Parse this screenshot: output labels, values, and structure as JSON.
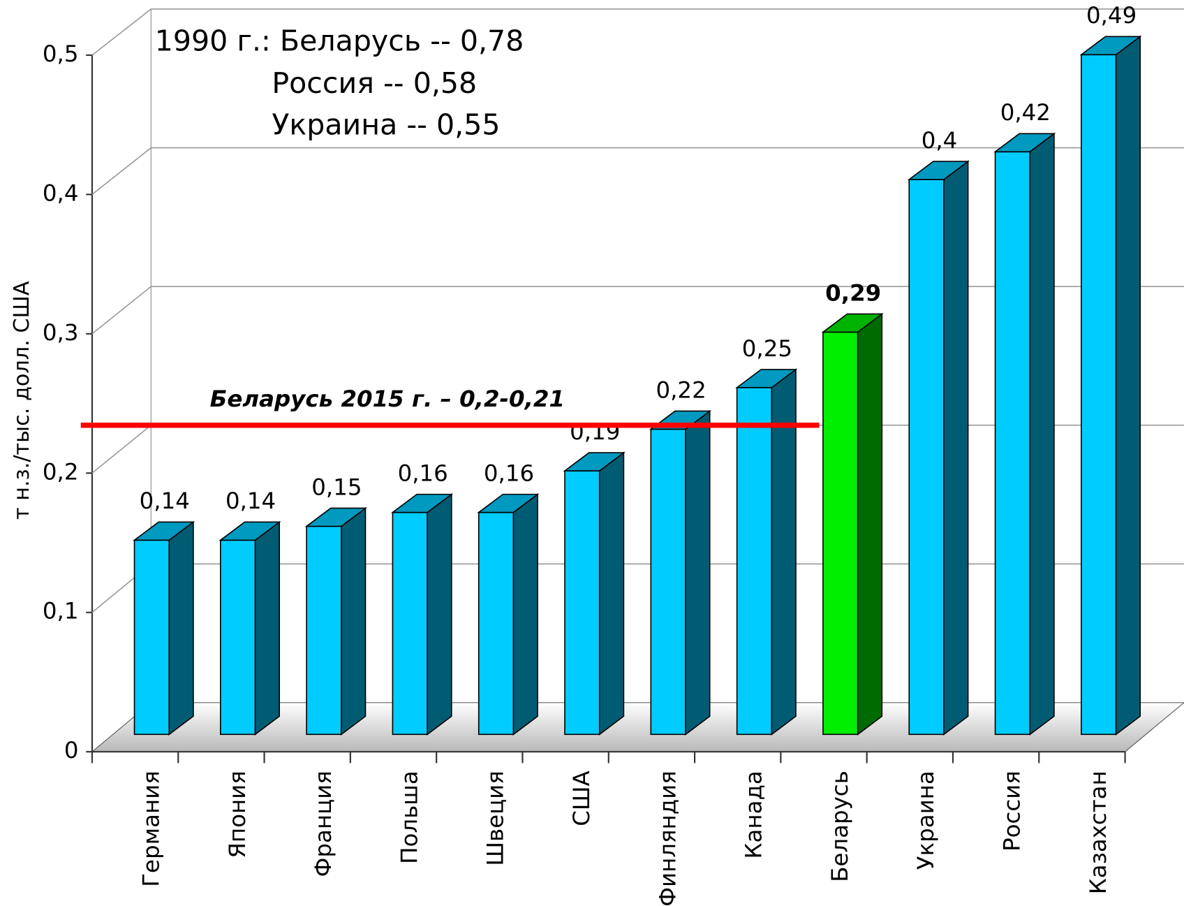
{
  "chart_data": {
    "type": "bar3d",
    "y_label": "т н.з./тыс. долл. США",
    "categories": [
      "Германия",
      "Япония",
      "Франция",
      "Польша",
      "Швеция",
      "США",
      "Финляндия",
      "Канада",
      "Беларусь",
      "Украина",
      "Россия",
      "Казахстан"
    ],
    "values": [
      0.14,
      0.14,
      0.15,
      0.16,
      0.16,
      0.19,
      0.22,
      0.25,
      0.29,
      0.4,
      0.42,
      0.49
    ],
    "value_labels": [
      "0,14",
      "0,14",
      "0,15",
      "0,16",
      "0,16",
      "0,19",
      "0,22",
      "0,25",
      "0,29",
      "0,4",
      "0,42",
      "0,49"
    ],
    "colors": [
      "#00ccff",
      "#00ccff",
      "#00ccff",
      "#00ccff",
      "#00ccff",
      "#00ccff",
      "#00ccff",
      "#00ccff",
      "#00ee00",
      "#00ccff",
      "#00ccff",
      "#00ccff"
    ],
    "ylim": [
      0,
      0.5
    ],
    "yticks": [
      0,
      {
        "value": 0.1,
        "label": "0,1"
      },
      {
        "value": 0.2,
        "label": "0,2"
      },
      {
        "value": 0.3,
        "label": "0,3"
      },
      {
        "value": 0.4,
        "label": "0,4"
      },
      {
        "value": 0.5,
        "label": "0,5"
      }
    ],
    "grid": true,
    "annotations": [
      "1990 г.: Беларусь -- 0,78",
      "Россия -- 0,58",
      "Украина -- 0,55"
    ],
    "reference_line": {
      "label": "Беларусь 2015 г. – 0,2-0,21",
      "value": 0.2,
      "color": "#ff0000"
    }
  }
}
